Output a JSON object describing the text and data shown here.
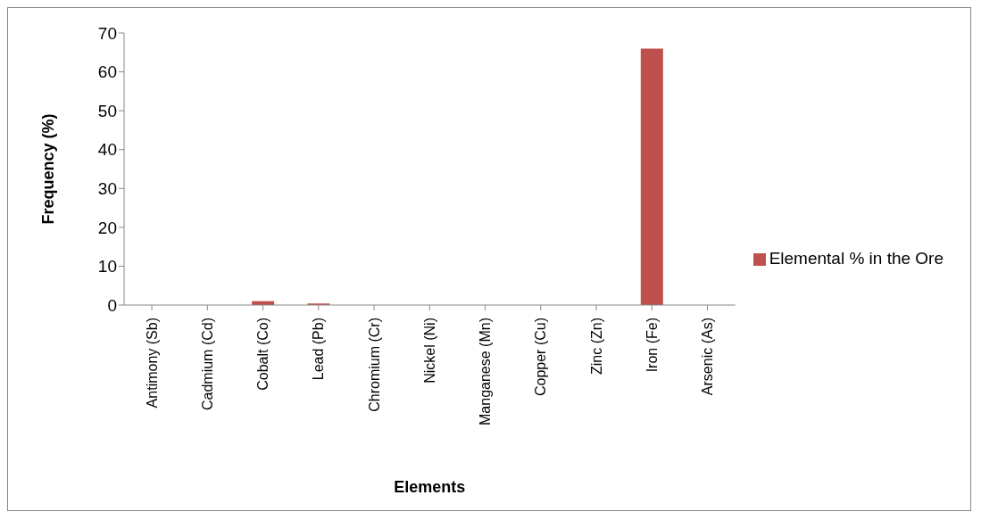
{
  "chart_data": {
    "type": "bar",
    "xlabel": "Elements",
    "ylabel": "Frequency (%)",
    "categories": [
      "Antimony (Sb)",
      "Cadmium (Cd)",
      "Cobalt (Co)",
      "Lead (Pb)",
      "Chromium (Cr)",
      "Nickel (Ni)",
      "Manganese (Mn)",
      "Copper (Cu)",
      "Zinc (Zn)",
      "Iron (Fe)",
      "Arsenic (As)"
    ],
    "series": [
      {
        "name": "Elemental % in the Ore",
        "color": "#c0504d",
        "values": [
          0,
          0,
          1.0,
          0.4,
          0,
          0,
          0,
          0,
          0,
          66,
          0
        ]
      }
    ],
    "ylim": [
      0,
      70
    ],
    "yticks": [
      0,
      10,
      20,
      30,
      40,
      50,
      60,
      70
    ],
    "grid": false,
    "legend": "right"
  }
}
